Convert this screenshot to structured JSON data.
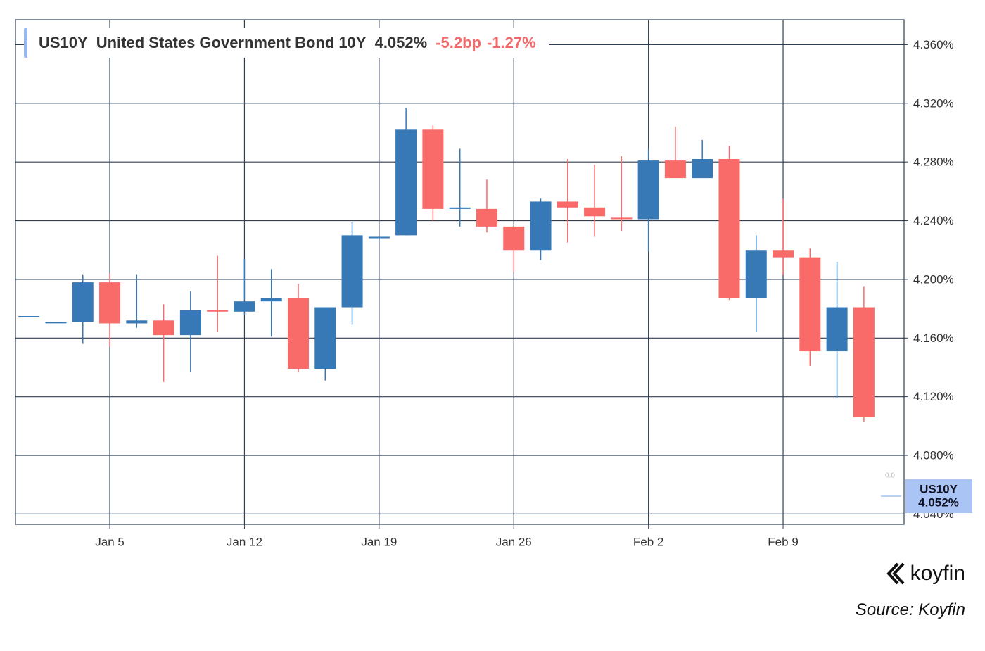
{
  "chart_data": {
    "type": "candlestick",
    "header": {
      "symbol": "US10Y",
      "name": "United States Government Bond 10Y",
      "price": "4.052%",
      "change": "-5.2bp",
      "change_pct": "-1.27%"
    },
    "marker_label": "0.0",
    "categories": [
      null,
      null,
      null,
      "Jan 5",
      null,
      null,
      null,
      null,
      "Jan 12",
      null,
      null,
      null,
      null,
      "Jan 19",
      null,
      null,
      null,
      null,
      "Jan 26",
      null,
      null,
      null,
      null,
      "Feb 2",
      null,
      null,
      null,
      null,
      "Feb 9",
      null,
      null,
      null
    ],
    "open": [
      4.175,
      4.171,
      4.171,
      4.198,
      4.17,
      4.172,
      4.162,
      4.179,
      4.178,
      4.185,
      4.187,
      4.139,
      4.181,
      4.229,
      4.23,
      4.302,
      4.248,
      4.248,
      4.236,
      4.22,
      4.253,
      4.249,
      4.242,
      4.241,
      4.281,
      4.269,
      4.282,
      4.187,
      4.22,
      4.215,
      4.151,
      4.181
    ],
    "high": [
      4.175,
      4.171,
      4.203,
      4.204,
      4.203,
      4.183,
      4.192,
      4.216,
      4.214,
      4.207,
      4.197,
      4.181,
      4.239,
      4.229,
      4.317,
      4.305,
      4.289,
      4.268,
      4.236,
      4.255,
      4.282,
      4.278,
      4.284,
      4.289,
      4.304,
      4.295,
      4.291,
      4.23,
      4.255,
      4.221,
      4.212,
      4.195
    ],
    "low": [
      4.175,
      4.171,
      4.156,
      4.154,
      4.167,
      4.13,
      4.137,
      4.164,
      4.176,
      4.161,
      4.137,
      4.131,
      4.169,
      4.229,
      4.23,
      4.24,
      4.236,
      4.232,
      4.205,
      4.213,
      4.225,
      4.229,
      4.233,
      4.219,
      4.269,
      4.269,
      4.186,
      4.164,
      4.203,
      4.141,
      4.119,
      4.103
    ],
    "close": [
      4.175,
      4.171,
      4.198,
      4.17,
      4.172,
      4.162,
      4.179,
      4.178,
      4.185,
      4.187,
      4.139,
      4.181,
      4.23,
      4.229,
      4.302,
      4.248,
      4.249,
      4.236,
      4.22,
      4.253,
      4.249,
      4.243,
      4.241,
      4.281,
      4.269,
      4.282,
      4.187,
      4.22,
      4.215,
      4.151,
      4.181,
      4.106
    ],
    "up_color": "#3679b6",
    "down_color": "#f96b69",
    "ylim": [
      4.033,
      4.377
    ],
    "yticks": [
      {
        "value": 4.04,
        "label": "4.040%"
      },
      {
        "value": 4.08,
        "label": "4.080%"
      },
      {
        "value": 4.12,
        "label": "4.120%"
      },
      {
        "value": 4.16,
        "label": "4.160%"
      },
      {
        "value": 4.2,
        "label": "4.200%"
      },
      {
        "value": 4.24,
        "label": "4.240%"
      },
      {
        "value": 4.28,
        "label": "4.280%"
      },
      {
        "value": 4.32,
        "label": "4.320%"
      },
      {
        "value": 4.36,
        "label": "4.360%"
      }
    ],
    "grid": true,
    "brand": "koyfin",
    "source": "Source: Koyfin"
  }
}
